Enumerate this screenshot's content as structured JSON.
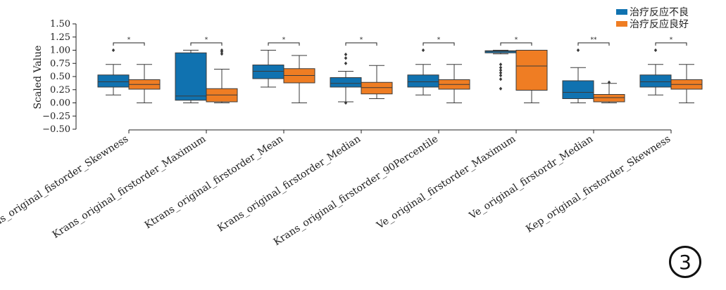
{
  "figure_number": "3",
  "chart_data": {
    "type": "box",
    "title": "",
    "xlabel": "",
    "ylabel": "Scaled Value",
    "ylim": [
      -0.5,
      1.5
    ],
    "yticks": [
      -0.5,
      -0.25,
      0.0,
      0.25,
      0.5,
      0.75,
      1.0,
      1.25,
      1.5
    ],
    "ytick_labels": [
      "−0.50",
      "−0.25",
      "0.00",
      "0.25",
      "0.50",
      "0.75",
      "1.00",
      "1.25",
      "1.50"
    ],
    "grid": false,
    "legend_position": "top-right",
    "categories": [
      "Krans_original_fistorder_Skewness",
      "Krans_original_firstorder_Maximum",
      "Ktrans_original_firstorder_Mean",
      "Krans_original_firstorder_Median",
      "Krans_original_firstorder_90Percentile",
      "Ve_original_firstorder_Maximum",
      "Ve_original_firstordr_Median",
      "Kep_original_firstorder_Skewness"
    ],
    "significance": [
      "*",
      "*",
      "*",
      "*",
      "*",
      "*",
      "**",
      "*"
    ],
    "series": [
      {
        "name": "治疗反应不良",
        "color": "#1072b0",
        "boxes": [
          {
            "whisker_low": 0.15,
            "q1": 0.3,
            "median": 0.4,
            "q3": 0.53,
            "whisker_high": 0.73,
            "outliers": [
              1.0
            ]
          },
          {
            "whisker_low": 0.0,
            "q1": 0.05,
            "median": 0.13,
            "q3": 0.95,
            "whisker_high": 1.0,
            "outliers": []
          },
          {
            "whisker_low": 0.3,
            "q1": 0.46,
            "median": 0.6,
            "q3": 0.72,
            "whisker_high": 1.0,
            "outliers": []
          },
          {
            "whisker_low": 0.02,
            "q1": 0.3,
            "median": 0.37,
            "q3": 0.48,
            "whisker_high": 0.6,
            "outliers": [
              0.0,
              0.75,
              0.85,
              0.92
            ]
          },
          {
            "whisker_low": 0.15,
            "q1": 0.3,
            "median": 0.4,
            "q3": 0.53,
            "whisker_high": 0.73,
            "outliers": [
              1.0
            ]
          },
          {
            "whisker_low": 0.93,
            "q1": 0.95,
            "median": 0.98,
            "q3": 0.99,
            "whisker_high": 1.0,
            "outliers": [
              0.27,
              0.45,
              0.52,
              0.57,
              0.62,
              0.67,
              0.73
            ]
          },
          {
            "whisker_low": 0.0,
            "q1": 0.08,
            "median": 0.2,
            "q3": 0.42,
            "whisker_high": 0.67,
            "outliers": [
              1.0
            ]
          },
          {
            "whisker_low": 0.15,
            "q1": 0.3,
            "median": 0.4,
            "q3": 0.53,
            "whisker_high": 0.73,
            "outliers": [
              1.0
            ]
          }
        ]
      },
      {
        "name": "治疗反应良好",
        "color": "#ef7d23",
        "boxes": [
          {
            "whisker_low": 0.0,
            "q1": 0.26,
            "median": 0.35,
            "q3": 0.44,
            "whisker_high": 0.73,
            "outliers": []
          },
          {
            "whisker_low": 0.0,
            "q1": 0.02,
            "median": 0.15,
            "q3": 0.27,
            "whisker_high": 0.64,
            "outliers": [
              0.93,
              0.97,
              1.0
            ]
          },
          {
            "whisker_low": 0.0,
            "q1": 0.38,
            "median": 0.52,
            "q3": 0.65,
            "whisker_high": 0.9,
            "outliers": []
          },
          {
            "whisker_low": 0.08,
            "q1": 0.17,
            "median": 0.29,
            "q3": 0.39,
            "whisker_high": 0.71,
            "outliers": []
          },
          {
            "whisker_low": 0.0,
            "q1": 0.26,
            "median": 0.35,
            "q3": 0.44,
            "whisker_high": 0.73,
            "outliers": []
          },
          {
            "whisker_low": 0.0,
            "q1": 0.24,
            "median": 0.7,
            "q3": 1.0,
            "whisker_high": 1.0,
            "outliers": []
          },
          {
            "whisker_low": 0.0,
            "q1": 0.02,
            "median": 0.1,
            "q3": 0.16,
            "whisker_high": 0.37,
            "outliers": [
              0.39
            ]
          },
          {
            "whisker_low": 0.0,
            "q1": 0.26,
            "median": 0.35,
            "q3": 0.44,
            "whisker_high": 0.73,
            "outliers": []
          }
        ]
      }
    ]
  }
}
